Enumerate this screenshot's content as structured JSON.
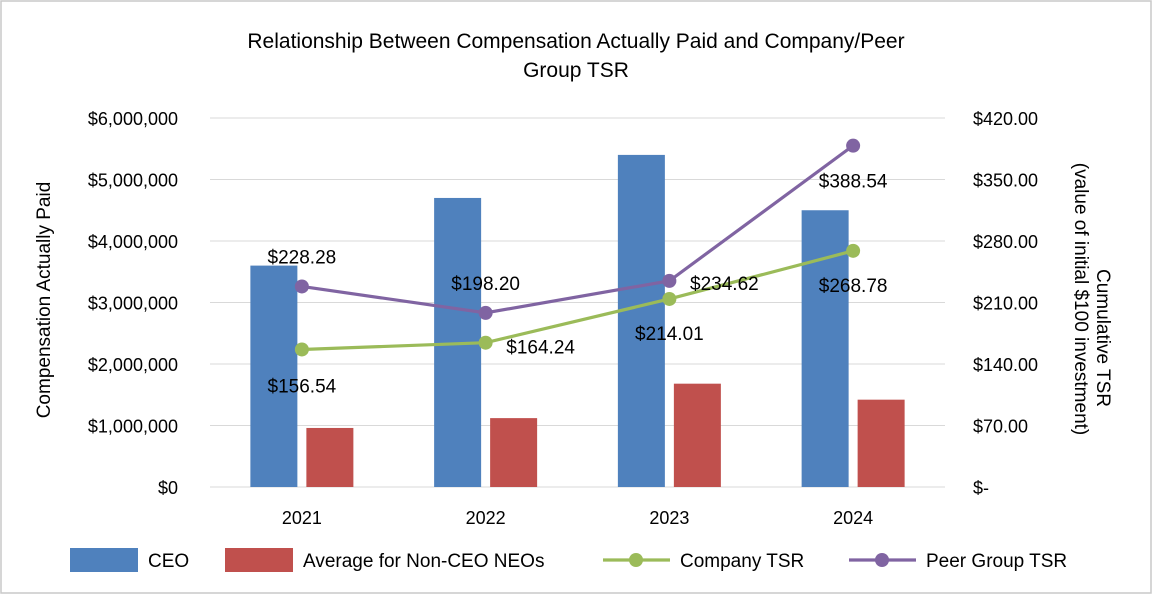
{
  "chart_data": {
    "type": "bar",
    "title_lines": [
      "Relationship Between Compensation Actually Paid and Company/Peer",
      "Group TSR"
    ],
    "categories": [
      "2021",
      "2022",
      "2023",
      "2024"
    ],
    "left_axis": {
      "label": "Compensation Actually Paid",
      "range": [
        0,
        6000000
      ],
      "ticks": [
        0,
        1000000,
        2000000,
        3000000,
        4000000,
        5000000,
        6000000
      ],
      "tick_labels": [
        "$0",
        "$1,000,000",
        "$2,000,000",
        "$3,000,000",
        "$4,000,000",
        "$5,000,000",
        "$6,000,000"
      ]
    },
    "right_axis": {
      "label_lines": [
        "Cumulative TSR",
        "(value of initial $100 investment)"
      ],
      "range": [
        0,
        420
      ],
      "ticks": [
        0,
        70,
        140,
        210,
        280,
        350,
        420
      ],
      "tick_labels": [
        "$-",
        "$70.00",
        "$140.00",
        "$210.00",
        "$280.00",
        "$350.00",
        "$420.00"
      ]
    },
    "bar_series": [
      {
        "name": "CEO",
        "color": "#4f81bd",
        "values": [
          3600000,
          4700000,
          5400000,
          4500000
        ]
      },
      {
        "name": "Average for Non-CEO NEOs",
        "color": "#c0504d",
        "values": [
          960000,
          1120000,
          1680000,
          1420000
        ]
      }
    ],
    "line_series": [
      {
        "name": "Company TSR",
        "color": "#9bbb59",
        "values": [
          156.54,
          164.24,
          214.01,
          268.78
        ],
        "labels": [
          "$156.54",
          "$164.24",
          "$214.01",
          "$268.78"
        ]
      },
      {
        "name": "Peer Group TSR",
        "color": "#8064a2",
        "values": [
          228.28,
          198.2,
          234.62,
          388.54
        ],
        "labels": [
          "$228.28",
          "$198.20",
          "$234.62",
          "$388.54"
        ]
      }
    ],
    "legend_position": "bottom",
    "grid": true
  }
}
